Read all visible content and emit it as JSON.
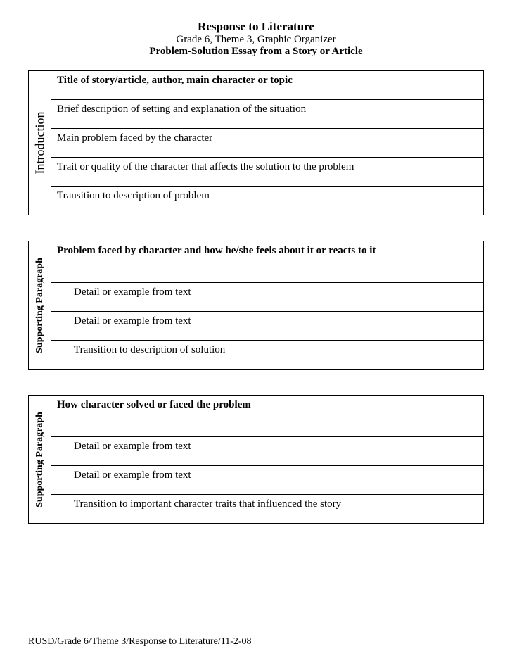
{
  "header": {
    "title": "Response to Literature",
    "subtitle": "Grade 6, Theme 3, Graphic Organizer",
    "essay": "Problem-Solution Essay from a Story or Article"
  },
  "section1": {
    "label": "Introduction",
    "rows": [
      "Title of story/article, author, main character or topic",
      "Brief description of setting and explanation of the situation",
      "Main problem faced by the character",
      "Trait or quality of the character that affects the solution to the problem",
      "Transition to description of problem"
    ]
  },
  "section2": {
    "label": "Supporting Paragraph",
    "rows": [
      "Problem faced by character and how he/she feels about it or reacts to it",
      "Detail or example from text",
      "Detail or example from text",
      "Transition to description of solution"
    ]
  },
  "section3": {
    "label": "Supporting Paragraph",
    "rows": [
      "How character solved or faced the problem",
      "Detail or example from text",
      "Detail or example from text",
      "Transition to important character traits that influenced the story"
    ]
  },
  "footer": "RUSD/Grade 6/Theme 3/Response to Literature/11-2-08"
}
